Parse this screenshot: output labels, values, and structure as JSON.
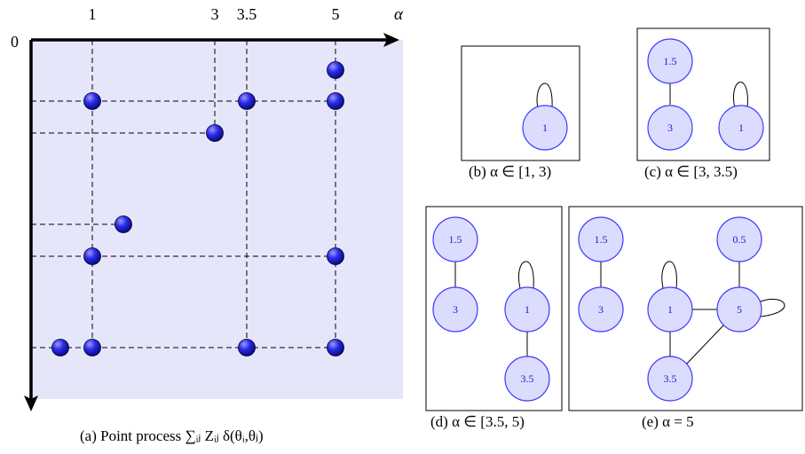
{
  "panel_a": {
    "origin_label": "0",
    "axis_symbol": "α",
    "ticks": [
      {
        "label": "1",
        "value": 1
      },
      {
        "label": "3",
        "value": 3
      },
      {
        "label": "3.5",
        "value": 3.5
      },
      {
        "label": "5",
        "value": 5
      }
    ],
    "atoms": [
      {
        "col": 5,
        "row": 0.55
      },
      {
        "col": 1,
        "row": 1
      },
      {
        "col": 3.5,
        "row": 1
      },
      {
        "col": 5,
        "row": 1
      },
      {
        "col": 3,
        "row": 1.5
      },
      {
        "col": 1.5,
        "row": 3
      },
      {
        "col": 1,
        "row": 3.5
      },
      {
        "col": 5,
        "row": 3.5
      },
      {
        "col": 0.5,
        "row": 5
      },
      {
        "col": 1,
        "row": 5
      },
      {
        "col": 3.5,
        "row": 5
      },
      {
        "col": 5,
        "row": 5
      }
    ],
    "caption": "(a)  Point process ∑ᵢⱼ Zᵢⱼ δ(θᵢ,θⱼ)",
    "colors": {
      "background": "#e6e6fa",
      "atom": "#1a1ad6",
      "atom_highlight": "#8a8aff"
    }
  },
  "panel_b": {
    "caption": "(b)  α ∈ [1, 3)",
    "nodes": [
      {
        "label": "1"
      }
    ]
  },
  "panel_c": {
    "caption": "(c)  α ∈ [3, 3.5)",
    "nodes": [
      {
        "label": "1.5"
      },
      {
        "label": "3"
      },
      {
        "label": "1"
      }
    ]
  },
  "panel_d": {
    "caption": "(d)  α ∈ [3.5, 5)",
    "nodes": [
      {
        "label": "1.5"
      },
      {
        "label": "3"
      },
      {
        "label": "1"
      },
      {
        "label": "3.5"
      }
    ]
  },
  "panel_e": {
    "caption": "(e)  α = 5",
    "nodes": [
      {
        "label": "1.5"
      },
      {
        "label": "3"
      },
      {
        "label": "1"
      },
      {
        "label": "3.5"
      },
      {
        "label": "0.5"
      },
      {
        "label": "5"
      }
    ]
  }
}
